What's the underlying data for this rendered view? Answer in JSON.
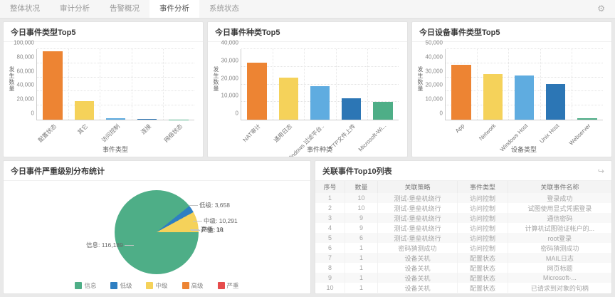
{
  "nav": {
    "tabs": [
      {
        "label": "整体状况",
        "active": false
      },
      {
        "label": "审计分析",
        "active": false
      },
      {
        "label": "告警概况",
        "active": false
      },
      {
        "label": "事件分析",
        "active": true
      },
      {
        "label": "系统状态",
        "active": false
      }
    ],
    "gear_icon": "⚙"
  },
  "palette": [
    "#ED8433",
    "#F5D25A",
    "#5FACE0",
    "#2C76B5",
    "#4EAE87"
  ],
  "chart_data": [
    {
      "type": "bar",
      "title": "今日事件类型Top5",
      "categories": [
        "配置状态",
        "其它",
        "访问控制",
        "连接",
        "网络状态"
      ],
      "values": [
        97000,
        26000,
        2500,
        1200,
        300
      ],
      "xlabel": "事件类型",
      "ylabel": "发生数量",
      "ylim": [
        0,
        100000
      ],
      "tick_step": 20000,
      "bar_colors": [
        "#ED8433",
        "#F5D25A",
        "#5FACE0",
        "#2C76B5",
        "#4EAE87"
      ]
    },
    {
      "type": "bar",
      "title": "今日事件种类Top5",
      "categories": [
        "NAT审计",
        "通用日志",
        "Windows 过滤平台..",
        "FTP文件上传",
        "Microsoft-Wi..."
      ],
      "values": [
        32400,
        24000,
        19000,
        12000,
        10000
      ],
      "xlabel": "事件种类",
      "ylabel": "发生数量",
      "ylim": [
        0,
        40000
      ],
      "tick_step": 10000,
      "bar_colors": [
        "#ED8433",
        "#F5D25A",
        "#5FACE0",
        "#2C76B5",
        "#4EAE87"
      ]
    },
    {
      "type": "bar",
      "title": "今日设备事件类型Top5",
      "categories": [
        "App",
        "Network",
        "Windows Host",
        "Unix Host",
        "Webserver"
      ],
      "values": [
        38800,
        32300,
        31100,
        25500,
        1000
      ],
      "xlabel": "设备类型",
      "ylabel": "发生数量",
      "ylim": [
        0,
        50000
      ],
      "tick_step": 10000,
      "bar_colors": [
        "#ED8433",
        "#F5D25A",
        "#5FACE0",
        "#2C76B5",
        "#4EAE87"
      ]
    },
    {
      "type": "pie",
      "title": "今日事件严重级别分布统计",
      "labels": [
        "信息",
        "低级",
        "中级",
        "高级",
        "严重"
      ],
      "values": [
        116189,
        3658,
        10291,
        16,
        14
      ],
      "label_texts": [
        "信息: 116,189",
        "低级: 3,658",
        "中级: 10,291",
        "高级: 16",
        "严重: 14"
      ],
      "colors": [
        "#4EAE87",
        "#2E7FC2",
        "#F5D25A",
        "#ED8433",
        "#E64C4C"
      ],
      "legend_position": "bottom"
    }
  ],
  "table": {
    "title": "关联事件Top10列表",
    "headers": [
      "序号",
      "数量",
      "关联策略",
      "事件类型",
      "关联事件名称"
    ],
    "rows": [
      [
        "1",
        "10",
        "测试-堡垒机绕行",
        "访问控制",
        "登录成功"
      ],
      [
        "2",
        "10",
        "测试-堡垒机绕行",
        "访问控制",
        "试图使用显式凭据登录"
      ],
      [
        "3",
        "9",
        "测试-堡垒机绕行",
        "访问控制",
        "通信密码"
      ],
      [
        "4",
        "9",
        "测试-堡垒机绕行",
        "访问控制",
        "计算机试图验证帐户的..."
      ],
      [
        "5",
        "6",
        "测试-堡垒机绕行",
        "访问控制",
        "root登录"
      ],
      [
        "6",
        "1",
        "密码猜测成功",
        "访问控制",
        "密码猜测成功"
      ],
      [
        "7",
        "1",
        "设备关机",
        "配置状态",
        "MAIL日志"
      ],
      [
        "8",
        "1",
        "设备关机",
        "配置状态",
        "网页标题"
      ],
      [
        "9",
        "1",
        "设备关机",
        "配置状态",
        "Microsoft-..."
      ],
      [
        "10",
        "1",
        "设备关机",
        "配置状态",
        "已请求到对象的句柄"
      ]
    ]
  }
}
